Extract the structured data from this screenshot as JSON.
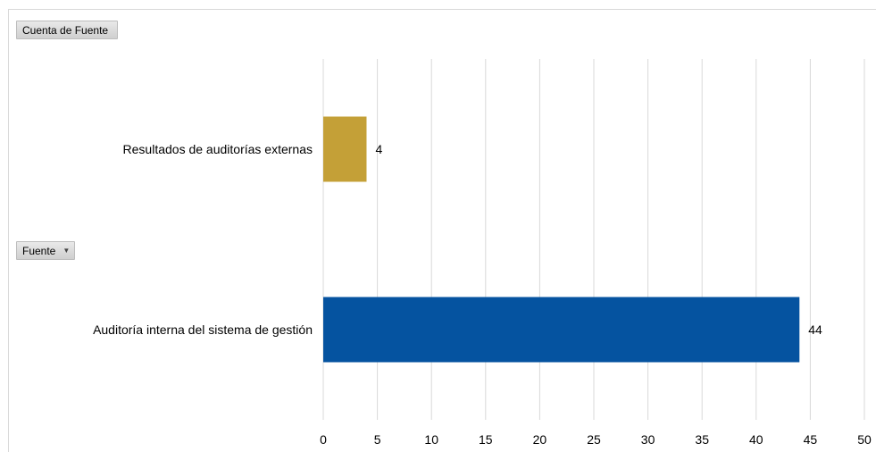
{
  "pivot": {
    "values_field": "Cuenta de Fuente",
    "axis_field": "Fuente",
    "axis_dropdown_icon": "dropdown-arrow-icon"
  },
  "chart_data": {
    "type": "bar",
    "orientation": "horizontal",
    "categories": [
      "Resultados de auditorías externas",
      "Auditoría interna del sistema de gestión"
    ],
    "values": [
      4,
      44
    ],
    "colors": [
      "#C4A037",
      "#0553A0"
    ],
    "data_labels": [
      "4",
      "44"
    ],
    "xlim": [
      0,
      50
    ],
    "xticks": [
      0,
      5,
      10,
      15,
      20,
      25,
      30,
      35,
      40,
      45,
      50
    ],
    "grid": "vertical",
    "gridline_color": "#d9d9d9",
    "legend": "none",
    "title": "",
    "xlabel": "",
    "ylabel": ""
  }
}
